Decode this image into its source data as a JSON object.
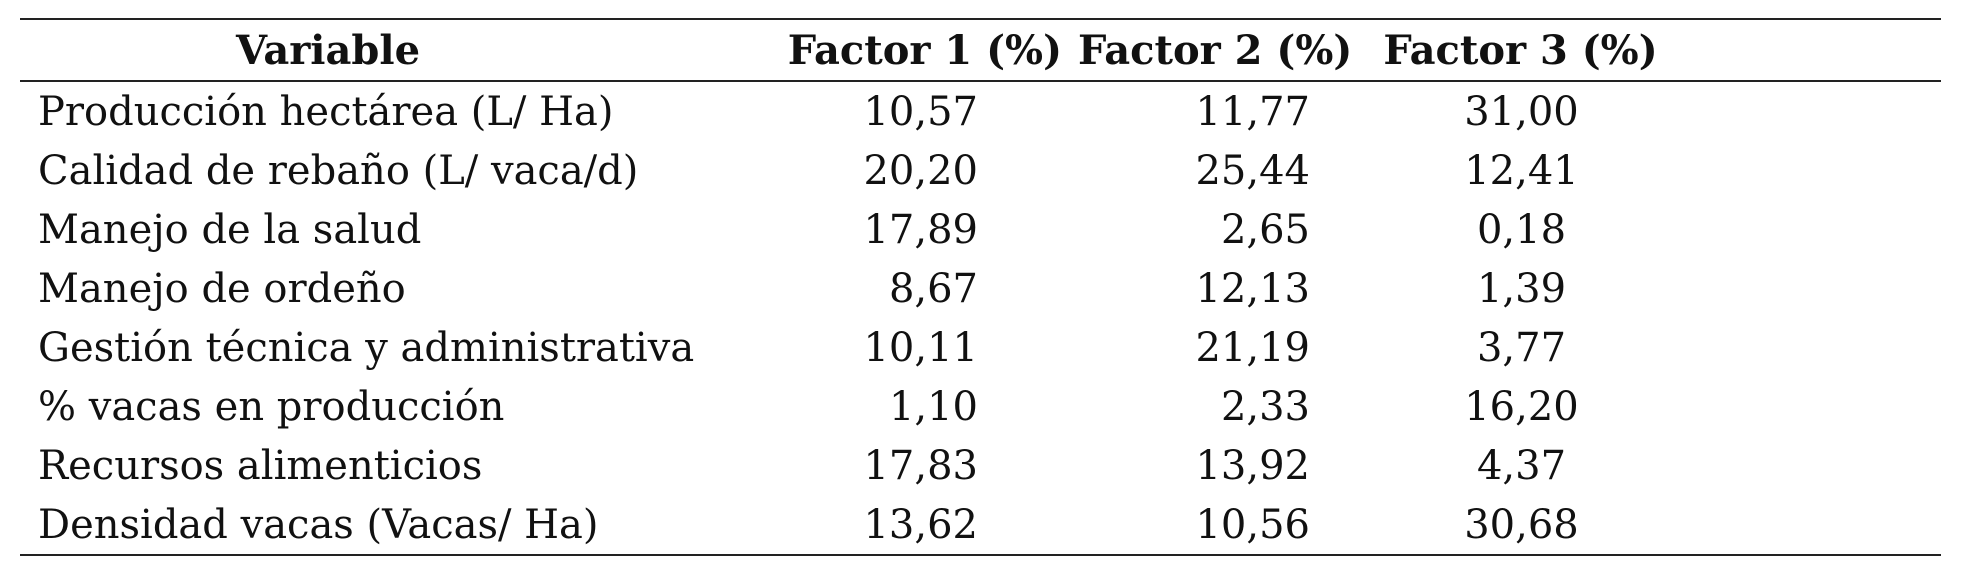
{
  "table": {
    "headers": [
      "Variable",
      "Factor 1 (%)",
      "Factor 2 (%)",
      "Factor 3 (%)"
    ],
    "rows": [
      [
        "Producción hectárea (L/ Ha)",
        "10,57",
        "11,77",
        "31,00"
      ],
      [
        "Calidad de rebaño (L/ vaca/d)",
        "20,20",
        "25,44",
        "12,41"
      ],
      [
        "Manejo de la salud",
        "17,89",
        "2,65",
        "0,18"
      ],
      [
        "Manejo de ordeño",
        "8,67",
        "12,13",
        "1,39"
      ],
      [
        "Gestión técnica y administrativa",
        "10,11",
        "21,19",
        "3,77"
      ],
      [
        "% vacas en producción",
        "1,10",
        "2,33",
        "16,20"
      ],
      [
        "Recursos alimenticios",
        "17,83",
        "13,92",
        "4,37"
      ],
      [
        "Densidad vacas (Vacas/ Ha)",
        "13,62",
        "10,56",
        "30,68"
      ]
    ]
  }
}
